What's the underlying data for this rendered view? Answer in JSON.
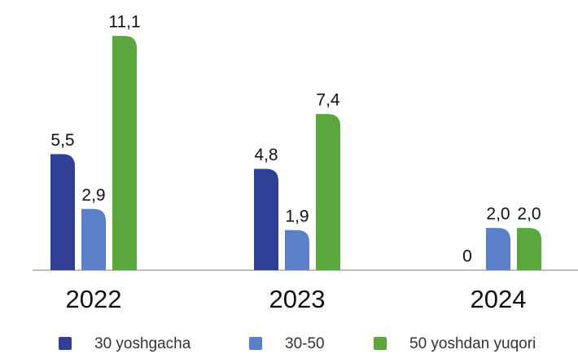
{
  "chart_data": {
    "type": "bar",
    "categories": [
      "2022",
      "2023",
      "2024"
    ],
    "series": [
      {
        "name": "30 yoshgacha",
        "color": "#2f3f96",
        "values": [
          5.5,
          4.8,
          0
        ],
        "value_labels": [
          "5,5",
          "4,8",
          "0"
        ]
      },
      {
        "name": "30-50",
        "color": "#5b7fc8",
        "values": [
          2.9,
          1.9,
          2.0
        ],
        "value_labels": [
          "2,9",
          "1,9",
          "2,0"
        ]
      },
      {
        "name": "50 yoshdan yuqori",
        "color": "#5aa83c",
        "values": [
          11.1,
          7.4,
          2.0
        ],
        "value_labels": [
          "11,1",
          "7,4",
          "2,0"
        ]
      }
    ],
    "ylim": [
      0,
      12.8
    ]
  }
}
